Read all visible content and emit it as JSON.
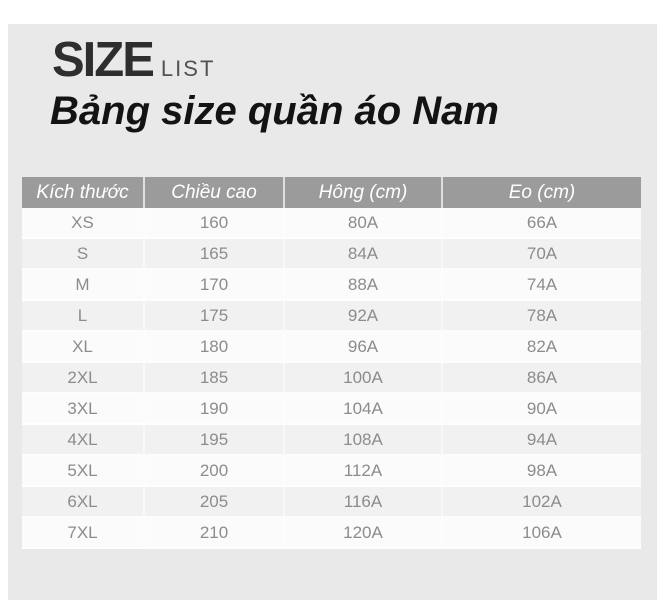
{
  "header": {
    "logo_primary": "SIZE",
    "logo_secondary": "LIST",
    "title": "Bảng size quần áo Nam"
  },
  "table": {
    "headers": [
      "Kích thước",
      "Chiều cao",
      "Hông (cm)",
      "Eo (cm)"
    ],
    "rows": [
      [
        "XS",
        "160",
        "80A",
        "66A"
      ],
      [
        "S",
        "165",
        "84A",
        "70A"
      ],
      [
        "M",
        "170",
        "88A",
        "74A"
      ],
      [
        "L",
        "175",
        "92A",
        "78A"
      ],
      [
        "XL",
        "180",
        "96A",
        "82A"
      ],
      [
        "2XL",
        "185",
        "100A",
        "86A"
      ],
      [
        "3XL",
        "190",
        "104A",
        "90A"
      ],
      [
        "4XL",
        "195",
        "108A",
        "94A"
      ],
      [
        "5XL",
        "200",
        "112A",
        "98A"
      ],
      [
        "6XL",
        "205",
        "116A",
        "102A"
      ],
      [
        "7XL",
        "210",
        "120A",
        "106A"
      ]
    ]
  },
  "colors": {
    "panel_bg": "#e9e9e9",
    "header_bg": "#9b9b9b",
    "header_text": "#ffffff",
    "row_light": "#fbfbfb",
    "row_shaded": "#f1f1f1",
    "body_text": "#8c8c8c",
    "title_text": "#131313",
    "logo_text": "#2e2e2e"
  }
}
